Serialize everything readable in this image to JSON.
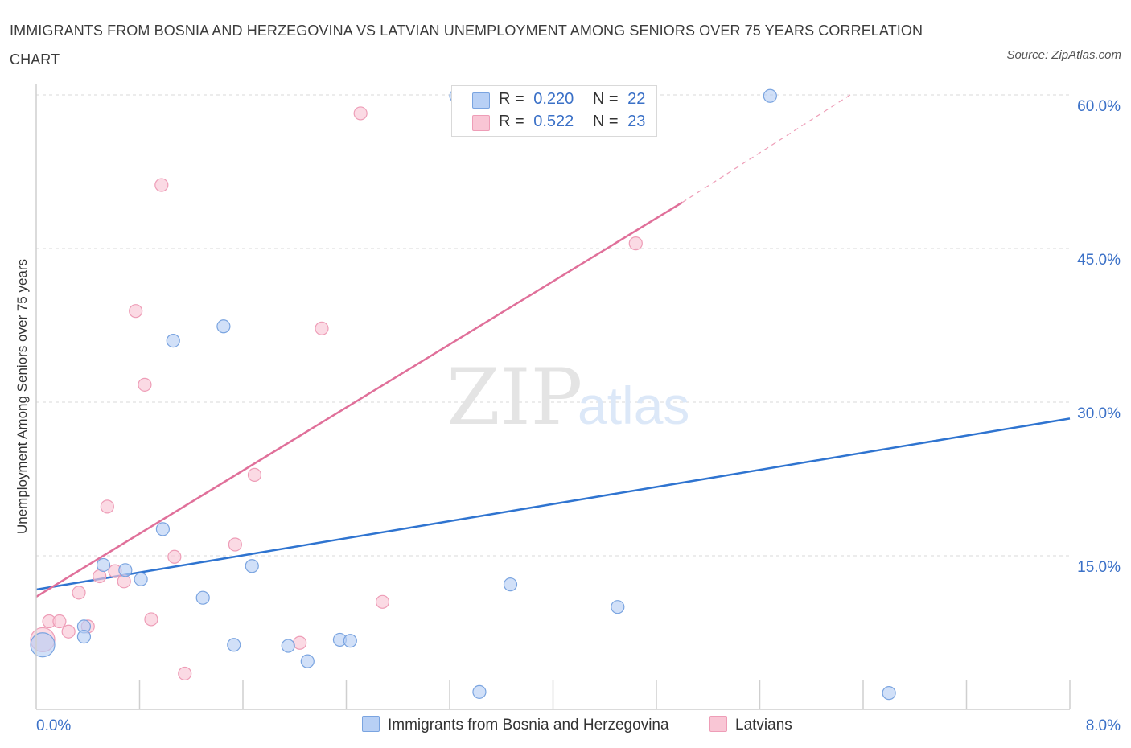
{
  "title": "IMMIGRANTS FROM BOSNIA AND HERZEGOVINA VS LATVIAN UNEMPLOYMENT AMONG SENIORS OVER 75 YEARS CORRELATION CHART",
  "source": "Source: ZipAtlas.com",
  "watermark": {
    "zip": "ZIP",
    "atlas": "atlas"
  },
  "legend": {
    "r_label": "R =",
    "n_label": "N =",
    "rows": [
      {
        "r": "0.220",
        "n": "22"
      },
      {
        "r": "0.522",
        "n": "23"
      }
    ]
  },
  "colors": {
    "blue_fill": "#b8d0f5",
    "blue_stroke": "#7aa4e0",
    "blue_line": "#2f74d0",
    "pink_fill": "#f9c6d5",
    "pink_stroke": "#ee9db7",
    "pink_line": "#e0709a",
    "axis_label": "#3a70c7",
    "grid": "#d8d8d8"
  },
  "chart_data": {
    "type": "scatter",
    "title": "IMMIGRANTS FROM BOSNIA AND HERZEGOVINA VS LATVIAN UNEMPLOYMENT AMONG SENIORS OVER 75 YEARS CORRELATION CHART",
    "xlabel": "",
    "ylabel": "Unemployment Among Seniors over 75 years",
    "xlim": [
      0,
      8
    ],
    "ylim": [
      0,
      60
    ],
    "x_tick_labels": [
      {
        "value": 0,
        "label": "0.0%"
      },
      {
        "value": 8,
        "label": "8.0%"
      }
    ],
    "y_tick_labels": [
      {
        "value": 15,
        "label": "15.0%"
      },
      {
        "value": 30,
        "label": "30.0%"
      },
      {
        "value": 45,
        "label": "45.0%"
      },
      {
        "value": 60,
        "label": "60.0%"
      }
    ],
    "grid": true,
    "series": [
      {
        "name": "Immigrants from Bosnia and Herzegovina",
        "color": "blue",
        "points": [
          {
            "x": 0.05,
            "y": 6.3,
            "big": true
          },
          {
            "x": 0.37,
            "y": 8.1
          },
          {
            "x": 0.37,
            "y": 7.1
          },
          {
            "x": 0.52,
            "y": 14.1
          },
          {
            "x": 0.69,
            "y": 13.6
          },
          {
            "x": 0.81,
            "y": 12.7
          },
          {
            "x": 0.98,
            "y": 17.6
          },
          {
            "x": 1.06,
            "y": 36.0
          },
          {
            "x": 1.29,
            "y": 10.9
          },
          {
            "x": 1.45,
            "y": 37.4
          },
          {
            "x": 1.53,
            "y": 6.3
          },
          {
            "x": 1.67,
            "y": 14.0
          },
          {
            "x": 1.95,
            "y": 6.2
          },
          {
            "x": 2.1,
            "y": 4.7
          },
          {
            "x": 2.35,
            "y": 6.8
          },
          {
            "x": 2.43,
            "y": 6.7
          },
          {
            "x": 3.25,
            "y": 59.9
          },
          {
            "x": 3.43,
            "y": 1.7
          },
          {
            "x": 3.67,
            "y": 12.2
          },
          {
            "x": 4.5,
            "y": 10.0
          },
          {
            "x": 5.68,
            "y": 59.9
          },
          {
            "x": 6.6,
            "y": 1.6
          }
        ],
        "trend": {
          "x_start": 0,
          "y_start": 11.7,
          "x_end": 8,
          "y_end": 28.4
        }
      },
      {
        "name": "Latvians",
        "color": "pink",
        "points": [
          {
            "x": 0.05,
            "y": 6.8,
            "big": true
          },
          {
            "x": 0.1,
            "y": 8.6
          },
          {
            "x": 0.18,
            "y": 8.6
          },
          {
            "x": 0.25,
            "y": 7.6
          },
          {
            "x": 0.33,
            "y": 11.4
          },
          {
            "x": 0.4,
            "y": 8.1
          },
          {
            "x": 0.49,
            "y": 13.0
          },
          {
            "x": 0.55,
            "y": 19.8
          },
          {
            "x": 0.61,
            "y": 13.5
          },
          {
            "x": 0.68,
            "y": 12.5
          },
          {
            "x": 0.77,
            "y": 38.9
          },
          {
            "x": 0.84,
            "y": 31.7
          },
          {
            "x": 0.89,
            "y": 8.8
          },
          {
            "x": 0.97,
            "y": 51.2
          },
          {
            "x": 1.07,
            "y": 14.9
          },
          {
            "x": 1.15,
            "y": 3.5
          },
          {
            "x": 1.54,
            "y": 16.1
          },
          {
            "x": 1.69,
            "y": 22.9
          },
          {
            "x": 2.04,
            "y": 6.5
          },
          {
            "x": 2.21,
            "y": 37.2
          },
          {
            "x": 2.51,
            "y": 58.2
          },
          {
            "x": 2.68,
            "y": 10.5
          },
          {
            "x": 4.64,
            "y": 45.5
          }
        ],
        "trend": {
          "x_start": 0,
          "y_start": 11.0,
          "x_end": 5.0,
          "y_end": 49.5,
          "dash_to_x": 6.3,
          "dash_to_y": 60.0
        }
      }
    ]
  }
}
